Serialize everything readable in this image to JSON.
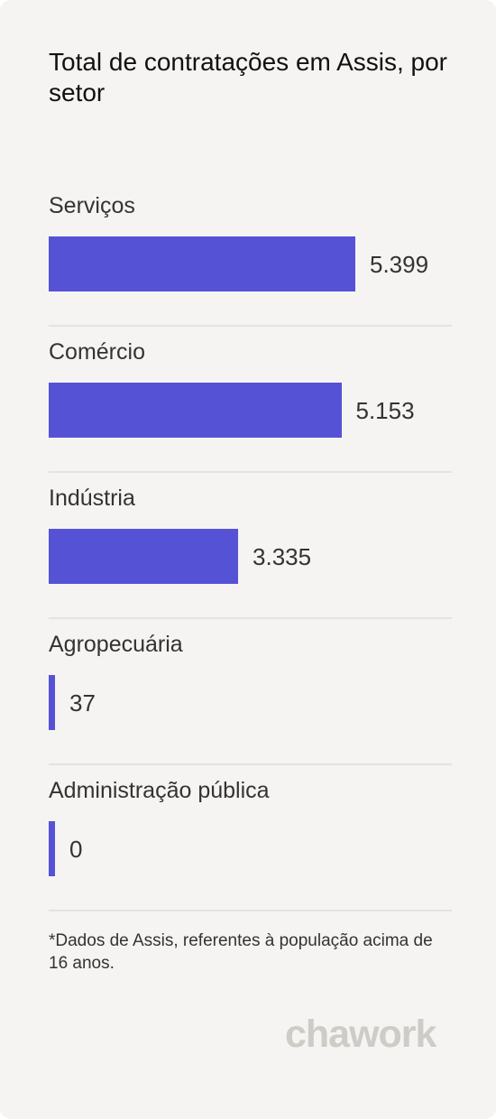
{
  "header": {
    "title": "Total de contratações em Assis, por setor"
  },
  "colors": {
    "bar": "#5652d6",
    "background": "#f5f4f2"
  },
  "chart_data": {
    "type": "bar",
    "orientation": "horizontal",
    "title": "Total de contratações em Assis, por setor",
    "categories": [
      "Serviços",
      "Comércio",
      "Indústria",
      "Agropecuária",
      "Administração pública"
    ],
    "values": [
      5399,
      5153,
      3335,
      37,
      0
    ],
    "value_labels": [
      "5.399",
      "5.153",
      "3.335",
      "37",
      "0"
    ],
    "grid": false,
    "legend": "none"
  },
  "footnote": "*Dados de Assis, referentes à população acima de 16 anos.",
  "logo": {
    "text": "chawork"
  }
}
